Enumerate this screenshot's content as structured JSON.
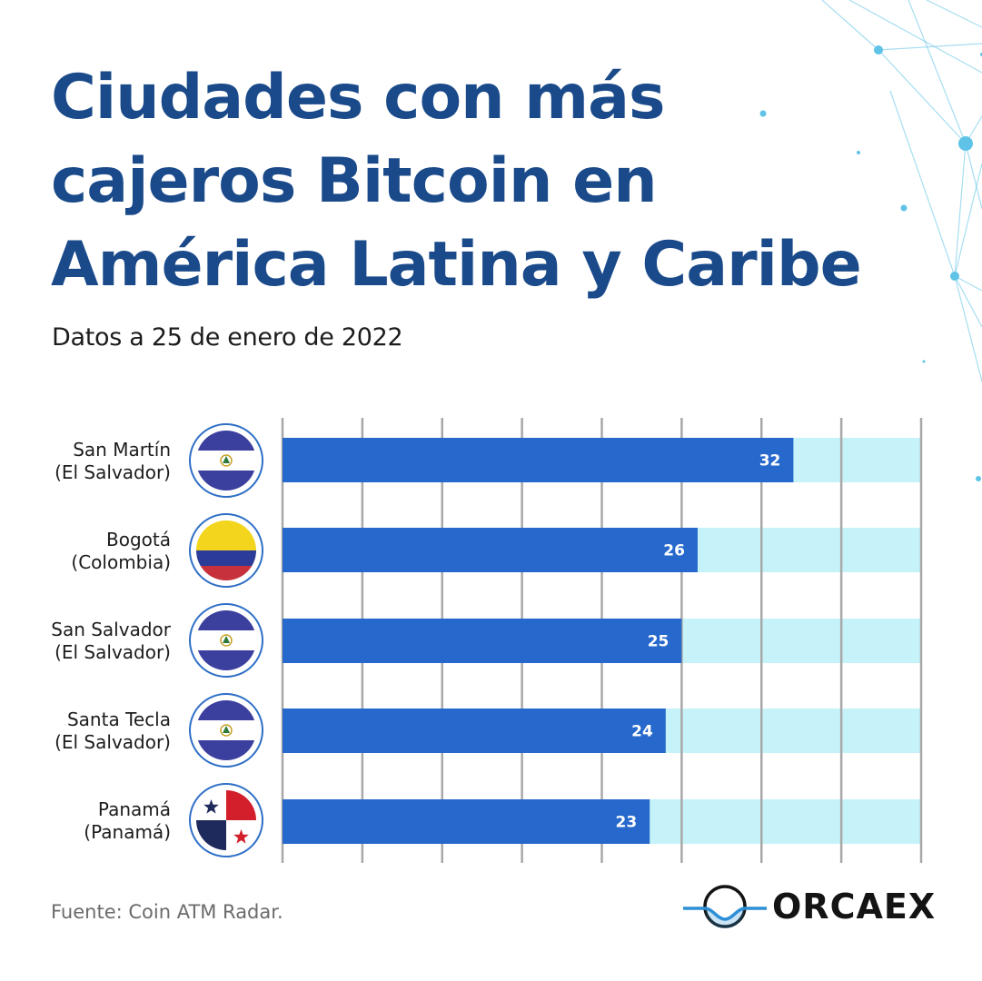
{
  "title_lines": [
    "Ciudades con más",
    "cajeros Bitcoin en",
    "América Latina y Caribe"
  ],
  "subtitle": "Datos a 25 de enero de 2022",
  "source": "Fuente: Coin ATM Radar.",
  "logo_text": "ORCAEX",
  "colors": {
    "title": "#1a4a8a",
    "bar": "#2668cc",
    "bar_track": "#c6f3fa",
    "grid": "#a8a8a8",
    "accent_network": "#5ec3e6"
  },
  "rows": [
    {
      "city": "San Martín",
      "country": "(El Salvador)",
      "flag": "el-salvador-flag-icon"
    },
    {
      "city": "Bogotá",
      "country": "(Colombia)",
      "flag": "colombia-flag-icon"
    },
    {
      "city": "San Salvador",
      "country": "(El Salvador)",
      "flag": "el-salvador-flag-icon"
    },
    {
      "city": "Santa Tecla",
      "country": "(El Salvador)",
      "flag": "el-salvador-flag-icon"
    },
    {
      "city": "Panamá",
      "country": "(Panamá)",
      "flag": "panama-flag-icon"
    }
  ],
  "chart_data": {
    "type": "bar",
    "orientation": "horizontal",
    "categories": [
      "San Martín (El Salvador)",
      "Bogotá (Colombia)",
      "San Salvador (El Salvador)",
      "Santa Tecla (El Salvador)",
      "Panamá (Panamá)"
    ],
    "values": [
      32,
      26,
      25,
      24,
      23
    ],
    "xlim": [
      0,
      40
    ],
    "grid": true,
    "data_labels": true,
    "legend": "none"
  }
}
